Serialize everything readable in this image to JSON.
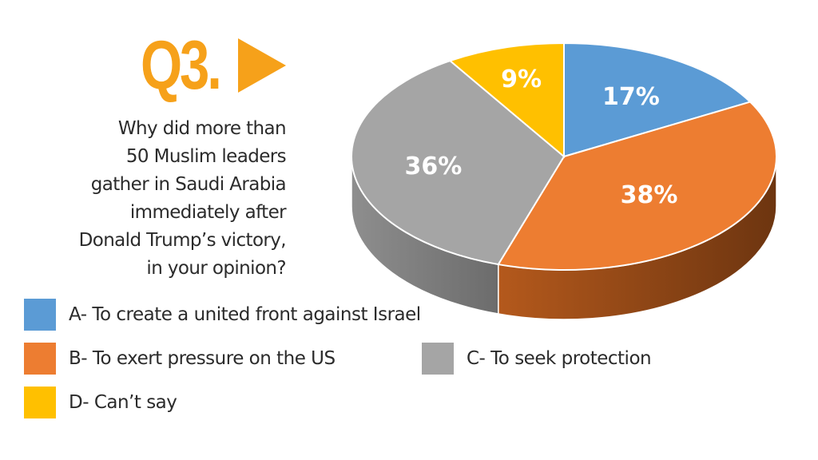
{
  "header": {
    "question_number": "Q3.",
    "question_lines": [
      "Why did more than",
      "50 Muslim leaders",
      "gather in Saudi Arabia",
      "immediately after",
      "Donald Trump’s victory,",
      "in your opinion?"
    ]
  },
  "chart_data": {
    "type": "pie",
    "categories": [
      "A- To create a united front against Israel",
      "B- To exert pressure on the US",
      "C- To seek protection",
      "D- Can’t say"
    ],
    "values": [
      17,
      38,
      36,
      9
    ],
    "labels": [
      "17%",
      "38%",
      "36%",
      "9%"
    ],
    "colors": [
      "#5b9bd5",
      "#ed7d31",
      "#a5a5a5",
      "#ffc000"
    ],
    "side_colors": [
      "#3f74a6",
      "#a9531a",
      "#7c7c7c",
      "#c99400"
    ],
    "style": "3d",
    "legend_position": "bottom"
  },
  "legend": {
    "items": [
      {
        "label": "A- To create a united front against Israel",
        "color": "#5b9bd5"
      },
      {
        "label": "B- To exert pressure on the US",
        "color": "#ed7d31"
      },
      {
        "label": "C- To seek protection",
        "color": "#a5a5a5"
      },
      {
        "label": "D- Can’t say",
        "color": "#ffc000"
      }
    ]
  }
}
